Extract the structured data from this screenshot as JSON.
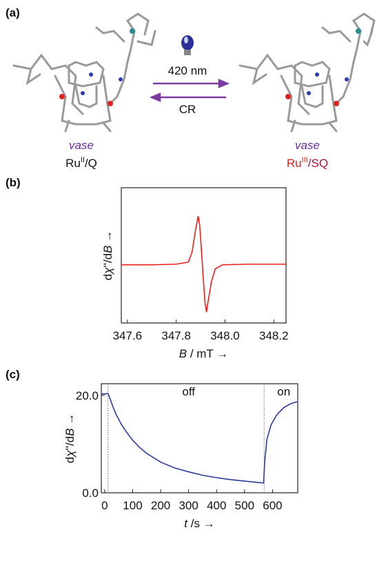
{
  "panel_a": {
    "label": "(a)",
    "wavelength": "420 nm",
    "reverse": "CR",
    "left": {
      "name": "vase",
      "state": [
        "Ru",
        "II",
        "/Q"
      ]
    },
    "right": {
      "name": "vase",
      "state": [
        "Ru",
        "III",
        "/SQ"
      ]
    }
  },
  "chart_data": [
    {
      "type": "line",
      "panel": "(b)",
      "color": "#e8231f",
      "xlabel": [
        "B",
        " / mT →"
      ],
      "ylabel": [
        "d",
        "χ",
        "''/d",
        "B",
        " →"
      ],
      "xlim": [
        347.575,
        348.25
      ],
      "xticks": [
        347.6,
        347.8,
        {
          "value": 348,
          "label": "348.0"
        },
        348.2
      ],
      "ylim": [
        -1,
        1
      ],
      "x": [
        347.575,
        347.7,
        347.8,
        347.85,
        347.865,
        347.878,
        347.89,
        347.896,
        347.902,
        347.91,
        347.918,
        347.924,
        347.932,
        347.945,
        347.96,
        347.99,
        348.1,
        348.25
      ],
      "values": [
        -0.14,
        -0.14,
        -0.13,
        -0.1,
        0.05,
        0.35,
        0.58,
        0.45,
        0.15,
        -0.3,
        -0.7,
        -0.84,
        -0.65,
        -0.38,
        -0.2,
        -0.14,
        -0.13,
        -0.13
      ]
    },
    {
      "type": "line",
      "panel": "(c)",
      "color": "#2a3b9c",
      "xlabel": [
        "t",
        " /s →"
      ],
      "ylabel": [
        "d",
        "χ",
        "''/d",
        "B",
        " →"
      ],
      "xlim": [
        -12,
        690
      ],
      "xticks": [
        0,
        100,
        200,
        300,
        400,
        500,
        600
      ],
      "ylim": [
        0,
        22.4
      ],
      "yticks": [
        {
          "value": 0,
          "label": "0.0"
        },
        {
          "value": 20,
          "label": "20.0"
        }
      ],
      "vlines": [
        12,
        570
      ],
      "annotations": [
        {
          "text": "off",
          "x": 300,
          "y": 20
        },
        {
          "text": "on",
          "x": 640,
          "y": 20
        }
      ],
      "x": [
        -12,
        0,
        12,
        20,
        30,
        40,
        60,
        80,
        100,
        125,
        150,
        175,
        200,
        250,
        300,
        350,
        400,
        450,
        500,
        550,
        568,
        572,
        580,
        595,
        615,
        640,
        665,
        688
      ],
      "values": [
        20.3,
        20.3,
        20.4,
        19.2,
        17.6,
        16.2,
        14.0,
        12.3,
        10.8,
        9.3,
        8.1,
        7.2,
        6.3,
        5.1,
        4.3,
        3.6,
        3.1,
        2.7,
        2.4,
        2.1,
        2.0,
        6.5,
        11.0,
        14.0,
        16.0,
        17.5,
        18.3,
        18.7
      ]
    }
  ]
}
